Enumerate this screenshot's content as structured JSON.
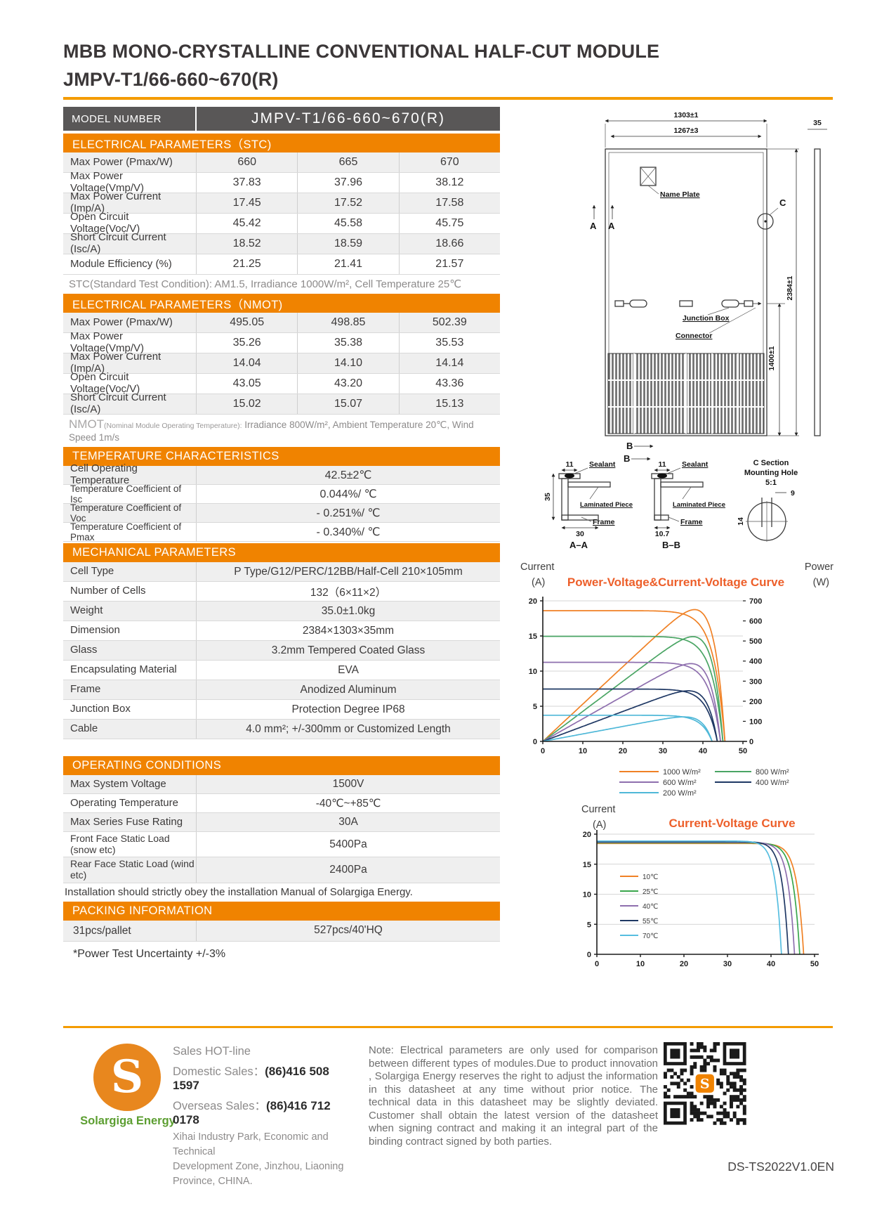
{
  "theme": {
    "accent_orange": "#f08300",
    "rule_orange": "#f49b00",
    "header_gray": "#595757",
    "row_gray": "#efefef",
    "chart_title_color": "#ed5f2a",
    "logo_orange": "#e8871e",
    "logo_green": "#5c9e31"
  },
  "header": {
    "title_line1": "MBB MONO-CRYSTALLINE CONVENTIONAL HALF-CUT MODULE",
    "title_line2": "JMPV-T1/66-660~670(R)"
  },
  "model_bar": {
    "label": "MODEL NUMBER",
    "value": "JMPV-T1/66-660~670(R)"
  },
  "stc": {
    "title": "ELECTRICAL PARAMETERS（STC)",
    "rows": [
      {
        "label": "Max Power (Pmax/W)",
        "values": [
          "660",
          "665",
          "670"
        ]
      },
      {
        "label": "Max Power Voltage(Vmp/V)",
        "values": [
          "37.83",
          "37.96",
          "38.12"
        ]
      },
      {
        "label": "Max Power Current (Imp/A)",
        "values": [
          "17.45",
          "17.52",
          "17.58"
        ]
      },
      {
        "label": "Open Circuit Voltage(Voc/V)",
        "values": [
          "45.42",
          "45.58",
          "45.75"
        ]
      },
      {
        "label": "Short Circuit Current (Isc/A)",
        "values": [
          "18.52",
          "18.59",
          "18.66"
        ]
      },
      {
        "label": "Module Efficiency (%)",
        "values": [
          "21.25",
          "21.41",
          "21.57"
        ]
      }
    ],
    "note": "STC(Standard Test Condition): AM1.5, Irradiance 1000W/m², Cell Temperature 25℃"
  },
  "nmot": {
    "title": "ELECTRICAL PARAMETERS（NMOT)",
    "rows": [
      {
        "label": "Max Power (Pmax/W)",
        "values": [
          "495.05",
          "498.85",
          "502.39"
        ]
      },
      {
        "label": "Max Power Voltage(Vmp/V)",
        "values": [
          "35.26",
          "35.38",
          "35.53"
        ]
      },
      {
        "label": "Max Power Current (Imp/A)",
        "values": [
          "14.04",
          "14.10",
          "14.14"
        ]
      },
      {
        "label": "Open Circuit Voltage(Voc/V)",
        "values": [
          "43.05",
          "43.20",
          "43.36"
        ]
      },
      {
        "label": "Short Circuit Current (Isc/A)",
        "values": [
          "15.02",
          "15.07",
          "15.13"
        ]
      }
    ],
    "note_prefix": "NMOT",
    "note_small": "(Nominal Module Operating Temperature):",
    "note_rest": " Irradiance 800W/m², Ambient Temperature 20℃, Wind Speed 1m/s"
  },
  "temperature": {
    "title": "TEMPERATURE CHARACTERISTICS",
    "rows": [
      {
        "label": "Cell Operating Temperature",
        "value": "42.5±2℃"
      },
      {
        "label": "Temperature Coefficient of Isc",
        "value": "0.044%/ ℃"
      },
      {
        "label": "Temperature Coefficient of Voc",
        "value": "- 0.251%/ ℃"
      },
      {
        "label": "Temperature Coefficient of Pmax",
        "value": "- 0.340%/ ℃"
      }
    ]
  },
  "mechanical": {
    "title": "MECHANICAL PARAMETERS",
    "rows": [
      {
        "label": "Cell Type",
        "value": "P Type/G12/PERC/12BB/Half-Cell  210×105mm"
      },
      {
        "label": "Number of Cells",
        "value": "132（6×11×2）"
      },
      {
        "label": "Weight",
        "value": "35.0±1.0kg"
      },
      {
        "label": "Dimension",
        "value": "2384×1303×35mm"
      },
      {
        "label": "Glass",
        "value": "3.2mm Tempered Coated Glass"
      },
      {
        "label": "Encapsulating Material",
        "value": "EVA"
      },
      {
        "label": "Frame",
        "value": "Anodized Aluminum"
      },
      {
        "label": "Junction Box",
        "value": "Protection Degree IP68"
      },
      {
        "label": "Cable",
        "value": "4.0 mm²; +/-300mm or Customized Length"
      }
    ]
  },
  "operating": {
    "title": "OPERATING CONDITIONS",
    "rows": [
      {
        "label": "Max System Voltage",
        "value": "1500V"
      },
      {
        "label": "Operating Temperature",
        "value": "-40℃~+85℃"
      },
      {
        "label": "Max Series Fuse Rating",
        "value": "30A"
      },
      {
        "label": "Front Face Static Load (snow etc)",
        "value": "5400Pa"
      },
      {
        "label": "Rear Face Static Load (wind etc)",
        "value": "2400Pa"
      }
    ],
    "note": "Installation should strictly obey the installation Manual of Solargiga Energy."
  },
  "packing": {
    "title": "PACKING INFORMATION",
    "rows": [
      {
        "label": "31pcs/pallet",
        "value": "527pcs/40'HQ"
      }
    ],
    "note": "*Power Test Uncertainty  +/-3%"
  },
  "drawing": {
    "dims": {
      "w_outer": "1303±1",
      "w_inner": "1267±3",
      "thickness": "35",
      "jb_height": "1400±1",
      "height": "2384±1",
      "aa_top": "11",
      "aa_bottom": "30",
      "aa_side": "35",
      "bb_top": "11",
      "bb_bottom": "10.7",
      "c_top": "9",
      "c_side": "14"
    },
    "labels": {
      "name_plate": "Name Plate",
      "junction_box": "Junction Box",
      "connector": "Connector",
      "a": "A",
      "b": "B",
      "c": "C",
      "sealant": "Sealant",
      "laminated": "Laminated Piece",
      "frame": "Frame",
      "aa": "A–A",
      "bb": "B–B",
      "c_section": "C Section",
      "mounting_hole": "Mounting Hole",
      "scale": "5:1"
    }
  },
  "chart_data": [
    {
      "type": "line",
      "title": "Power-Voltage&Current-Voltage Curve",
      "y_axis_label": "Current",
      "y_axis_unit": "(A)",
      "y2_axis_label": "Power",
      "y2_axis_unit": "(W)",
      "x_max": 50,
      "y_max": 20,
      "y2_max": 700,
      "x_ticks": [
        0,
        10,
        20,
        30,
        40,
        50
      ],
      "y_ticks": [
        0,
        5,
        10,
        15,
        20
      ],
      "y2_ticks": [
        0,
        100,
        200,
        300,
        400,
        500,
        600,
        700
      ],
      "series": [
        {
          "label": "1000 W/m²",
          "color": "#f08125",
          "isc": 18.6,
          "voc": 45.5,
          "pmax_w": 660
        },
        {
          "label": "800 W/m²",
          "color": "#4aa564",
          "isc": 14.95,
          "voc": 45.0,
          "pmax_w": 528
        },
        {
          "label": "600 W/m²",
          "color": "#8e6fae",
          "isc": 11.25,
          "voc": 44.4,
          "pmax_w": 396
        },
        {
          "label": "400 W/m²",
          "color": "#1f3864",
          "isc": 7.45,
          "voc": 43.6,
          "pmax_w": 262
        },
        {
          "label": "200 W/m²",
          "color": "#4fb8d8",
          "isc": 3.72,
          "voc": 42.3,
          "pmax_w": 128
        }
      ]
    },
    {
      "type": "line",
      "title": "Current-Voltage Curve",
      "y_axis_label": "Current",
      "y_axis_unit": "(A)",
      "x_max": 50,
      "y_max": 20,
      "x_ticks": [
        0,
        10,
        20,
        30,
        40,
        50
      ],
      "y_ticks": [
        0,
        5,
        10,
        15,
        20
      ],
      "series": [
        {
          "label": "10℃",
          "color": "#f08125",
          "isc": 18.45,
          "voc": 47.5
        },
        {
          "label": "25℃",
          "color": "#3aa64c",
          "isc": 18.55,
          "voc": 46.6
        },
        {
          "label": "40℃",
          "color": "#8e6fae",
          "isc": 18.65,
          "voc": 45.4
        },
        {
          "label": "55℃",
          "color": "#1f3864",
          "isc": 18.75,
          "voc": 44.0
        },
        {
          "label": "70℃",
          "color": "#56bee0",
          "isc": 18.85,
          "voc": 42.4
        }
      ]
    }
  ],
  "footer": {
    "logo_letter": "S",
    "logo_text": "Solargiga Energy",
    "sales_hotline": "Sales HOT-line",
    "domestic_label": "Domestic Sales：",
    "domestic_number": "(86)416 508 1597",
    "overseas_label": "Overseas Sales：",
    "overseas_number": "(86)416 712 0178",
    "address_line1": "Xihai Industry Park, Economic and Technical",
    "address_line2": "Development Zone, Jinzhou, Liaoning",
    "address_line3": "Province, CHINA.",
    "note": "Note:  Electrical parameters are only used for comparison between different types of modules.Due to product innovation , Solargiga Energy reserves the right to adjust the information in this datasheet at any time without prior notice. The technical data in this datasheet may be slightly deviated. Customer shall obtain the latest version of the datasheet when signing contract and making it an integral part of the binding contract signed by both parties.",
    "doc_code": "DS-TS2022V1.0EN"
  }
}
